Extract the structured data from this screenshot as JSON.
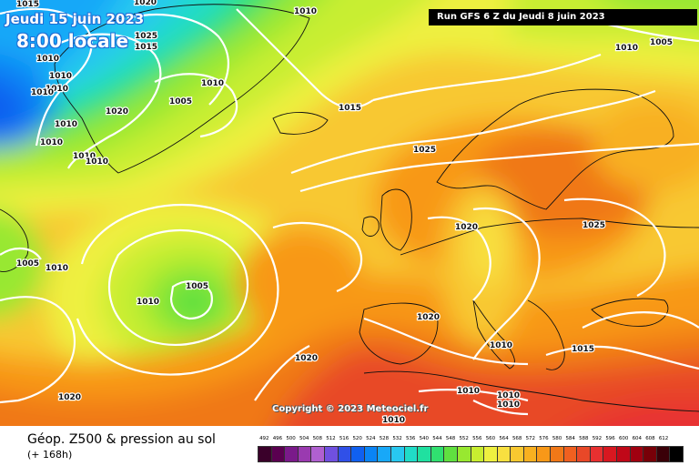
{
  "header": {
    "date_line": "Jeudi 15 juin 2023",
    "time_line": "8:00 locale",
    "run_info": "Run GFS 6 Z du Jeudi 8 juin 2023"
  },
  "copyright": "Copyright © 2023 Meteociel.fr",
  "legend": {
    "title": "Géop. Z500 & pression au sol",
    "subtitle": "(+ 168h)",
    "scale": [
      {
        "value": "492",
        "color": "#3a002a"
      },
      {
        "value": "496",
        "color": "#5a0050"
      },
      {
        "value": "500",
        "color": "#7a1a8a"
      },
      {
        "value": "504",
        "color": "#9a3ab0"
      },
      {
        "value": "508",
        "color": "#b060d0"
      },
      {
        "value": "512",
        "color": "#7050e0"
      },
      {
        "value": "516",
        "color": "#3050e8"
      },
      {
        "value": "520",
        "color": "#1060f0"
      },
      {
        "value": "524",
        "color": "#0a84f5"
      },
      {
        "value": "528",
        "color": "#18a8f8"
      },
      {
        "value": "532",
        "color": "#28c8f0"
      },
      {
        "value": "536",
        "color": "#20dcc8"
      },
      {
        "value": "540",
        "color": "#20e0a0"
      },
      {
        "value": "544",
        "color": "#30e070"
      },
      {
        "value": "548",
        "color": "#60e040"
      },
      {
        "value": "552",
        "color": "#98e830"
      },
      {
        "value": "556",
        "color": "#c8ee30"
      },
      {
        "value": "560",
        "color": "#eef040"
      },
      {
        "value": "564",
        "color": "#f8e040"
      },
      {
        "value": "568",
        "color": "#f8c830"
      },
      {
        "value": "572",
        "color": "#f8b020"
      },
      {
        "value": "576",
        "color": "#f89818"
      },
      {
        "value": "580",
        "color": "#f07818"
      },
      {
        "value": "584",
        "color": "#f06020"
      },
      {
        "value": "588",
        "color": "#e84828"
      },
      {
        "value": "592",
        "color": "#e83030"
      },
      {
        "value": "596",
        "color": "#d81820"
      },
      {
        "value": "600",
        "color": "#c00818"
      },
      {
        "value": "604",
        "color": "#a00010"
      },
      {
        "value": "608",
        "color": "#780008"
      },
      {
        "value": "612",
        "color": "#3a0008"
      },
      {
        "value": "",
        "color": "#000000"
      }
    ]
  },
  "isobar_labels": [
    "1015",
    "1020",
    "1010",
    "1025",
    "1015",
    "1010",
    "1010",
    "1010",
    "1010",
    "1010",
    "1020",
    "1005",
    "1010",
    "1010",
    "1010",
    "1010",
    "1015",
    "1010",
    "1005",
    "1025",
    "1020",
    "1025",
    "1005",
    "1010",
    "1005",
    "1010",
    "1020",
    "1020",
    "1010",
    "1015",
    "1020",
    "1010",
    "1010",
    "1010",
    "1010"
  ]
}
